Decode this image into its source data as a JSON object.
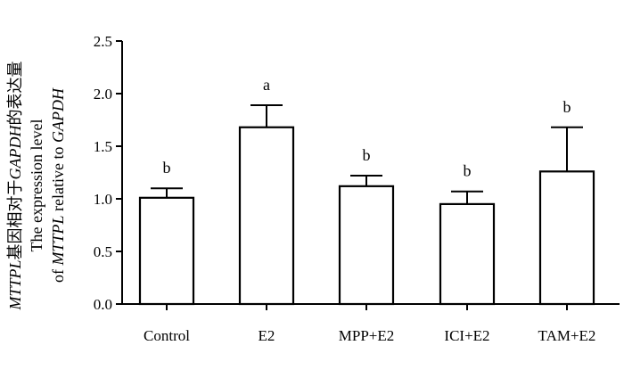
{
  "chart_data": {
    "type": "bar",
    "title": "",
    "xlabel": "",
    "ylabel_lines": [
      [
        {
          "text": "MTTPL",
          "italic": true
        },
        {
          "text": "基因相对于",
          "italic": false
        },
        {
          "text": "GAPDH",
          "italic": true
        },
        {
          "text": "的表达量",
          "italic": false
        }
      ],
      [
        {
          "text": "The expression level",
          "italic": false
        }
      ],
      [
        {
          "text": "of ",
          "italic": false
        },
        {
          "text": "MTTPL",
          "italic": true
        },
        {
          "text": " relative to ",
          "italic": false
        },
        {
          "text": "GAPDH",
          "italic": true
        }
      ]
    ],
    "categories": [
      "Control",
      "E2",
      "MPP+E2",
      "ICI+E2",
      "TAM+E2"
    ],
    "values": [
      1.01,
      1.68,
      1.12,
      0.95,
      1.26
    ],
    "error": [
      0.09,
      0.21,
      0.1,
      0.12,
      0.42
    ],
    "significance": [
      "b",
      "a",
      "b",
      "b",
      "b"
    ],
    "ylim": [
      0,
      2.5
    ],
    "yticks": [
      0.0,
      0.5,
      1.0,
      1.5,
      2.0,
      2.5
    ],
    "ytick_labels": [
      "0.0",
      "0.5",
      "1.0",
      "1.5",
      "2.0",
      "2.5"
    ],
    "grid": false,
    "colors": {
      "bar_fill": "#ffffff",
      "stroke": "#000000"
    }
  }
}
